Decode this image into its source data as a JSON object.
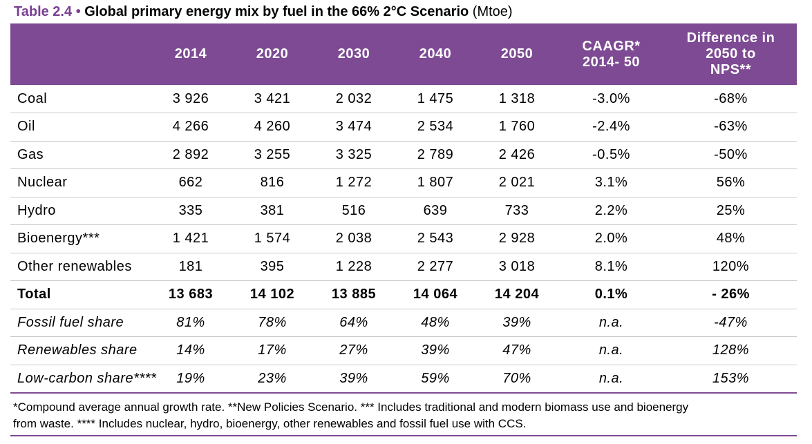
{
  "title": {
    "label": "Table 2.4",
    "bullet": "•",
    "text": "Global primary energy mix by fuel in the 66% 2°C Scenario",
    "unit": "(Mtoe)"
  },
  "headers": {
    "c2014": "2014",
    "c2020": "2020",
    "c2030": "2030",
    "c2040": "2040",
    "c2050": "2050",
    "caagr_line1": "CAAGR*",
    "caagr_line2": "2014- 50",
    "diff_line1": "Difference in",
    "diff_line2": "2050 to",
    "diff_line3": "NPS**"
  },
  "rows": [
    {
      "label": "Coal",
      "v2014": "3 926",
      "v2020": "3 421",
      "v2030": "2 032",
      "v2040": "1 475",
      "v2050": "1 318",
      "caagr": "-3.0%",
      "diff": "-68%"
    },
    {
      "label": "Oil",
      "v2014": "4 266",
      "v2020": "4 260",
      "v2030": "3 474",
      "v2040": "2 534",
      "v2050": "1 760",
      "caagr": "-2.4%",
      "diff": "-63%"
    },
    {
      "label": "Gas",
      "v2014": "2 892",
      "v2020": "3 255",
      "v2030": "3 325",
      "v2040": "2 789",
      "v2050": "2 426",
      "caagr": "-0.5%",
      "diff": "-50%"
    },
    {
      "label": "Nuclear",
      "v2014": "662",
      "v2020": "816",
      "v2030": "1 272",
      "v2040": "1 807",
      "v2050": "2 021",
      "caagr": "3.1%",
      "diff": "56%"
    },
    {
      "label": "Hydro",
      "v2014": "335",
      "v2020": "381",
      "v2030": "516",
      "v2040": "639",
      "v2050": "733",
      "caagr": "2.2%",
      "diff": "25%"
    },
    {
      "label": "Bioenergy***",
      "v2014": "1 421",
      "v2020": "1 574",
      "v2030": "2 038",
      "v2040": "2 543",
      "v2050": "2 928",
      "caagr": "2.0%",
      "diff": "48%"
    },
    {
      "label": "Other renewables",
      "v2014": "181",
      "v2020": "395",
      "v2030": "1 228",
      "v2040": "2 277",
      "v2050": "3 018",
      "caagr": "8.1%",
      "diff": "120%"
    },
    {
      "label": "Total",
      "v2014": "13 683",
      "v2020": "14 102",
      "v2030": "13 885",
      "v2040": "14 064",
      "v2050": "14 204",
      "caagr": "0.1%",
      "diff": "- 26%"
    },
    {
      "label": "Fossil fuel share",
      "v2014": "81%",
      "v2020": "78%",
      "v2030": "64%",
      "v2040": "48%",
      "v2050": "39%",
      "caagr": "n.a.",
      "diff": "-47%"
    },
    {
      "label": "Renewables share",
      "v2014": "14%",
      "v2020": "17%",
      "v2030": "27%",
      "v2040": "39%",
      "v2050": "47%",
      "caagr": "n.a.",
      "diff": "128%"
    },
    {
      "label": "Low-carbon share****",
      "v2014": "19%",
      "v2020": "23%",
      "v2030": "39%",
      "v2040": "59%",
      "v2050": "70%",
      "caagr": "n.a.",
      "diff": "153%"
    }
  ],
  "footnote": {
    "line1": "*Compound average annual growth rate. **New Policies Scenario. *** Includes traditional and modern biomass use and bioenergy",
    "line2": "from waste. **** Includes nuclear, hydro, bioenergy, other renewables and fossil fuel use with CCS."
  },
  "colors": {
    "accent": "#7d4a93",
    "title_accent": "#7a3f94",
    "row_divider": "#c8c8c8"
  }
}
